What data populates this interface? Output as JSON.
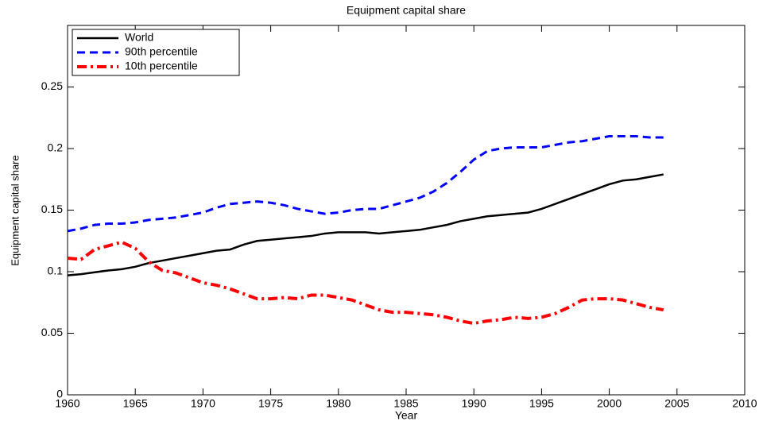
{
  "chart_data": {
    "type": "line",
    "title": "Equipment capital share",
    "xlabel": "Year",
    "ylabel": "Equipment capital share",
    "x": [
      1960,
      1961,
      1962,
      1963,
      1964,
      1965,
      1966,
      1967,
      1968,
      1969,
      1970,
      1971,
      1972,
      1973,
      1974,
      1975,
      1976,
      1977,
      1978,
      1979,
      1980,
      1981,
      1982,
      1983,
      1984,
      1985,
      1986,
      1987,
      1988,
      1989,
      1990,
      1991,
      1992,
      1993,
      1994,
      1995,
      1996,
      1997,
      1998,
      1999,
      2000,
      2001,
      2002,
      2003,
      2004
    ],
    "series": [
      {
        "name": "World",
        "color": "#000000",
        "dash": "solid",
        "values": [
          0.097,
          0.098,
          0.0995,
          0.101,
          0.102,
          0.104,
          0.107,
          0.109,
          0.111,
          0.113,
          0.115,
          0.117,
          0.118,
          0.122,
          0.125,
          0.126,
          0.127,
          0.128,
          0.129,
          0.131,
          0.132,
          0.132,
          0.132,
          0.131,
          0.132,
          0.133,
          0.134,
          0.136,
          0.138,
          0.141,
          0.143,
          0.145,
          0.146,
          0.147,
          0.148,
          0.151,
          0.155,
          0.159,
          0.163,
          0.167,
          0.171,
          0.174,
          0.175,
          0.177,
          0.179
        ]
      },
      {
        "name": "90th percentile",
        "color": "#0000ff",
        "dash": "dashed",
        "values": [
          0.133,
          0.135,
          0.138,
          0.139,
          0.139,
          0.14,
          0.142,
          0.143,
          0.144,
          0.146,
          0.148,
          0.152,
          0.155,
          0.156,
          0.157,
          0.156,
          0.154,
          0.151,
          0.149,
          0.147,
          0.148,
          0.15,
          0.151,
          0.151,
          0.154,
          0.157,
          0.16,
          0.165,
          0.172,
          0.181,
          0.191,
          0.198,
          0.2,
          0.201,
          0.201,
          0.201,
          0.203,
          0.205,
          0.206,
          0.208,
          0.21,
          0.21,
          0.21,
          0.209,
          0.209
        ]
      },
      {
        "name": "10th percentile",
        "color": "#ff0000",
        "dash": "dashdot",
        "values": [
          0.111,
          0.11,
          0.118,
          0.121,
          0.124,
          0.119,
          0.108,
          0.101,
          0.099,
          0.095,
          0.091,
          0.089,
          0.086,
          0.082,
          0.078,
          0.078,
          0.079,
          0.078,
          0.081,
          0.081,
          0.079,
          0.077,
          0.073,
          0.069,
          0.067,
          0.067,
          0.066,
          0.065,
          0.063,
          0.06,
          0.058,
          0.06,
          0.061,
          0.063,
          0.062,
          0.063,
          0.066,
          0.071,
          0.077,
          0.078,
          0.078,
          0.077,
          0.074,
          0.071,
          0.069
        ]
      }
    ],
    "xlim": [
      1960,
      2010
    ],
    "xticks": [
      1960,
      1965,
      1970,
      1975,
      1980,
      1985,
      1990,
      1995,
      2000,
      2005,
      2010
    ],
    "ylim": [
      0,
      0.3
    ],
    "yticks": [
      0,
      0.05,
      0.1,
      0.15,
      0.2,
      0.25
    ],
    "grid": false,
    "legend": "upper left"
  }
}
